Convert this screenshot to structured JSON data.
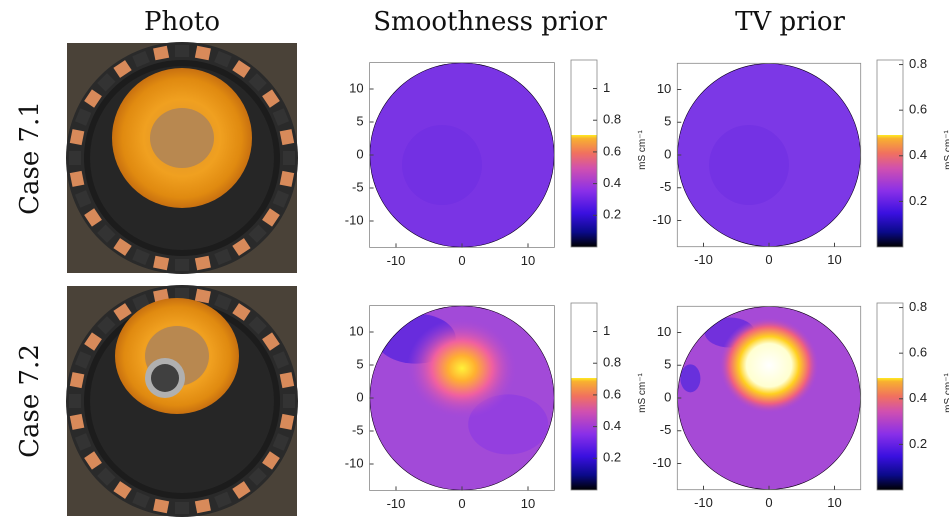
{
  "columns": [
    "Photo",
    "Smoothness prior",
    "TV prior"
  ],
  "rows": [
    {
      "label": "Case 7.1"
    },
    {
      "label": "Case 7.2"
    }
  ],
  "axes": {
    "xlim": [
      -14,
      14
    ],
    "ylim": [
      -14,
      14
    ],
    "xticks": [
      -10,
      0,
      10
    ],
    "yticks": [
      10,
      5,
      0,
      -5,
      -10
    ]
  },
  "colorbars": [
    {
      "unit": "mS cm⁻¹",
      "lim": [
        0,
        1.18
      ],
      "ticks": [
        0.2,
        0.4,
        0.6,
        0.8,
        1
      ]
    },
    {
      "unit": "mS cm⁻¹",
      "lim": [
        0,
        0.82
      ],
      "ticks": [
        0.2,
        0.4,
        0.6,
        0.8
      ]
    }
  ]
}
